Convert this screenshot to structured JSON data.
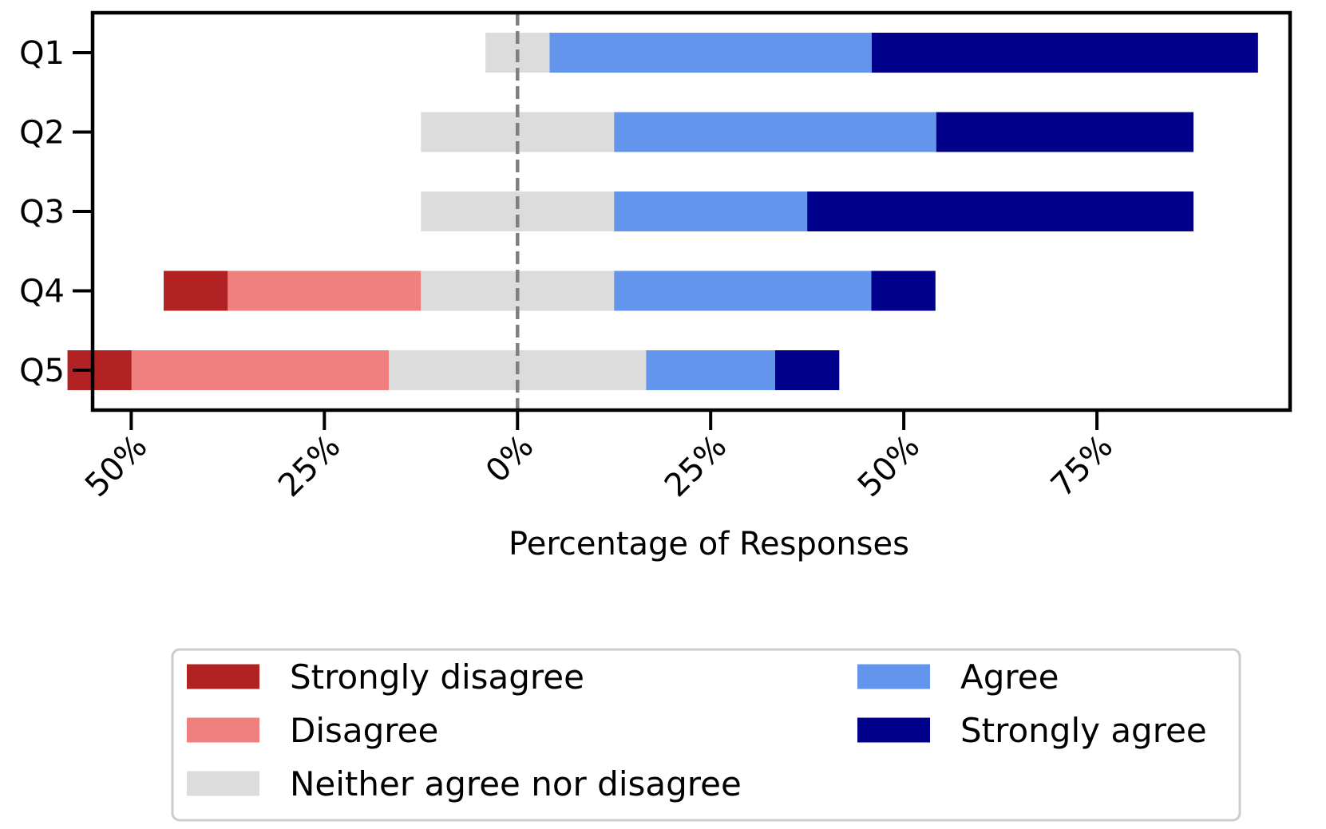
{
  "chart_data": {
    "type": "bar",
    "orientation": "horizontal",
    "stacking": "diverging",
    "xlabel": "Percentage of Responses",
    "ylabel": "",
    "title": "",
    "categories": [
      "Q1",
      "Q2",
      "Q3",
      "Q4",
      "Q5"
    ],
    "xlim": [
      -55,
      100
    ],
    "xticks": [
      {
        "value": -50,
        "label": "50%"
      },
      {
        "value": -25,
        "label": "25%"
      },
      {
        "value": 0,
        "label": "0%"
      },
      {
        "value": 25,
        "label": "25%"
      },
      {
        "value": 50,
        "label": "50%"
      },
      {
        "value": 75,
        "label": "75%"
      }
    ],
    "series": [
      {
        "name": "Strongly disagree",
        "color": "#b22222",
        "values": [
          0,
          0,
          0,
          8.3,
          8.3
        ]
      },
      {
        "name": "Disagree",
        "color": "#f08080",
        "values": [
          0,
          0,
          0,
          25,
          33.3
        ]
      },
      {
        "name": "Neither agree nor disagree",
        "color": "#dcdcdc",
        "values": [
          8.3,
          25,
          25,
          25,
          33.3
        ]
      },
      {
        "name": "Agree",
        "color": "#6495ed",
        "values": [
          41.7,
          41.7,
          25,
          33.3,
          16.7
        ]
      },
      {
        "name": "Strongly agree",
        "color": "#00008b",
        "values": [
          50,
          33.3,
          50,
          8.3,
          8.3
        ]
      }
    ],
    "center_line": {
      "value": 0,
      "style": "dashed",
      "color": "#808080"
    },
    "grid": false,
    "legend_position": "bottom-outside"
  }
}
